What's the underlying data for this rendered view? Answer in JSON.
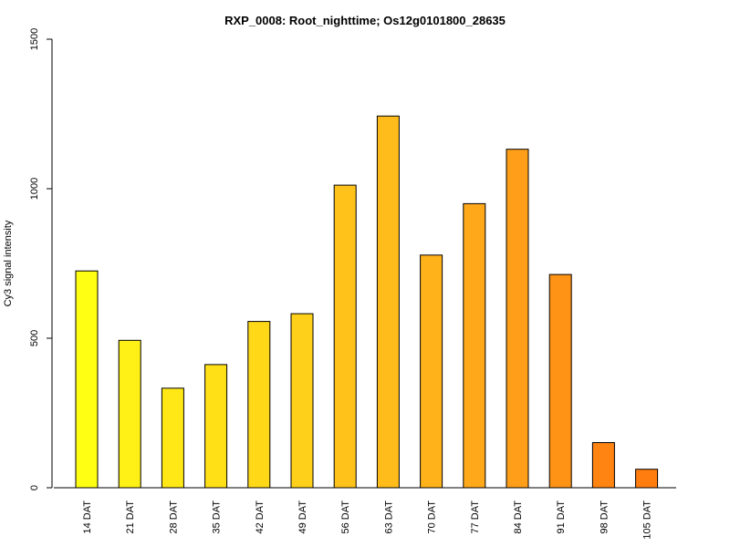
{
  "chart_data": {
    "type": "bar",
    "title": "RXP_0008: Root_nighttime; Os12g0101800_28635",
    "xlabel": "",
    "ylabel": "Cy3 signal intensity",
    "ylim": [
      0,
      1500
    ],
    "yticks": [
      0,
      500,
      1000,
      1500
    ],
    "categories": [
      "14 DAT",
      "21 DAT",
      "28 DAT",
      "35 DAT",
      "42 DAT",
      "49 DAT",
      "56 DAT",
      "63 DAT",
      "70 DAT",
      "77 DAT",
      "84 DAT",
      "91 DAT",
      "98 DAT",
      "105 DAT"
    ],
    "values": [
      725,
      493,
      333,
      412,
      556,
      582,
      1012,
      1243,
      778,
      950,
      1132,
      713,
      151,
      62
    ],
    "colors": [
      "#FFFF14",
      "#FFF015",
      "#FFE816",
      "#FFE017",
      "#FFD818",
      "#FFD019",
      "#FFC21A",
      "#FFBC1A",
      "#FFB21A",
      "#FFA81A",
      "#FF9E18",
      "#FF9316",
      "#FF8412",
      "#FF7D0E"
    ],
    "grid": false,
    "legend": "none"
  }
}
